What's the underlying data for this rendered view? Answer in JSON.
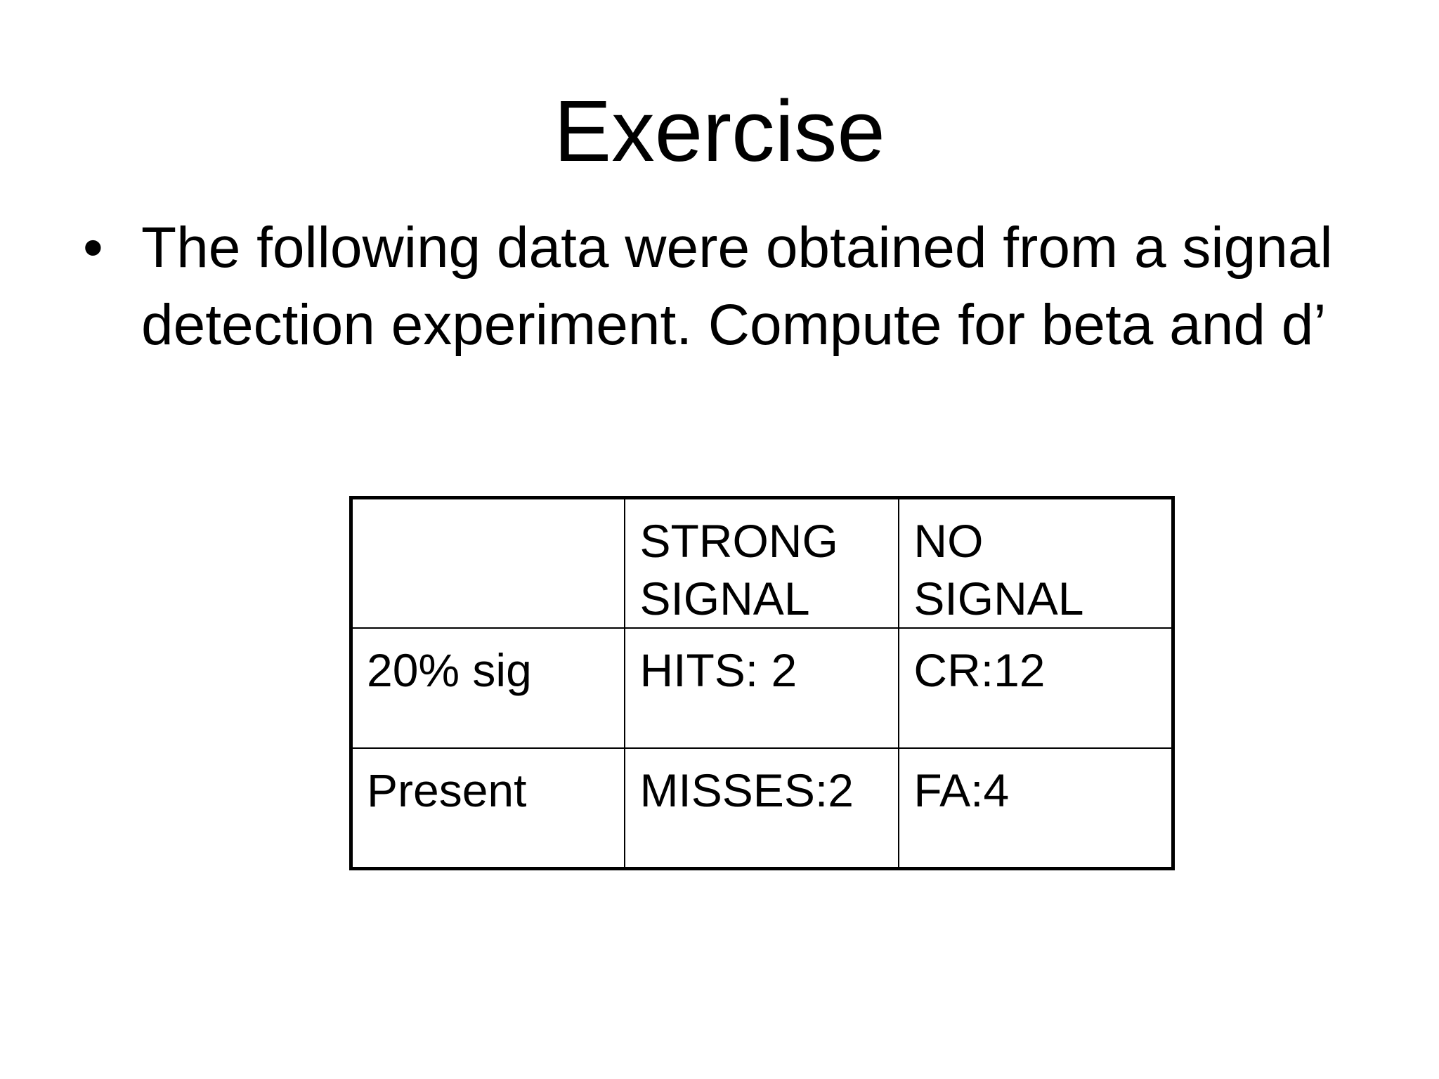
{
  "slide": {
    "title": "Exercise",
    "bullet_glyph": "•",
    "bullet_text": "The following data were obtained from a signal detection experiment. Compute for beta and d’"
  },
  "table": {
    "header": [
      "",
      "STRONG SIGNAL",
      "NO SIGNAL"
    ],
    "rows": [
      [
        "20% sig",
        "HITS: 2",
        "CR:12"
      ],
      [
        "Present",
        "MISSES:2",
        "FA:4"
      ]
    ]
  }
}
